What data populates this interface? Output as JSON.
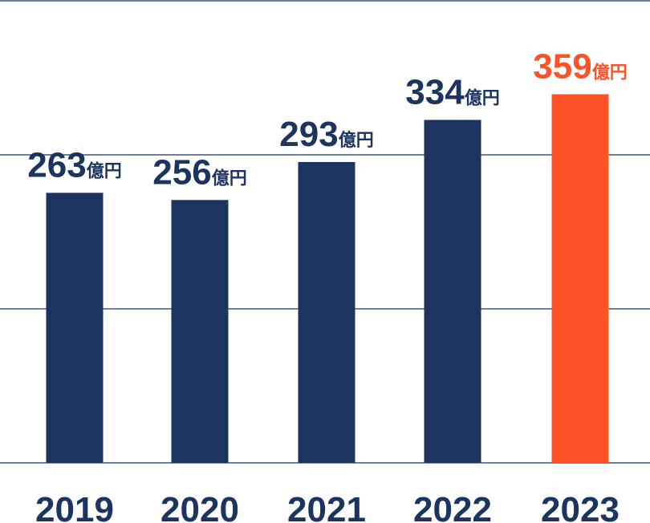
{
  "chart_data": {
    "type": "bar",
    "categories": [
      "2019",
      "2020",
      "2021",
      "2022",
      "2023"
    ],
    "values": [
      263,
      256,
      293,
      334,
      359
    ],
    "unit": "億円",
    "ylim": [
      0,
      450
    ],
    "grid": true,
    "colors": {
      "default": "#1b3560",
      "highlight": "#ff5226",
      "grid": "#1b3560"
    },
    "highlight_index": 4,
    "data_labels": true
  }
}
